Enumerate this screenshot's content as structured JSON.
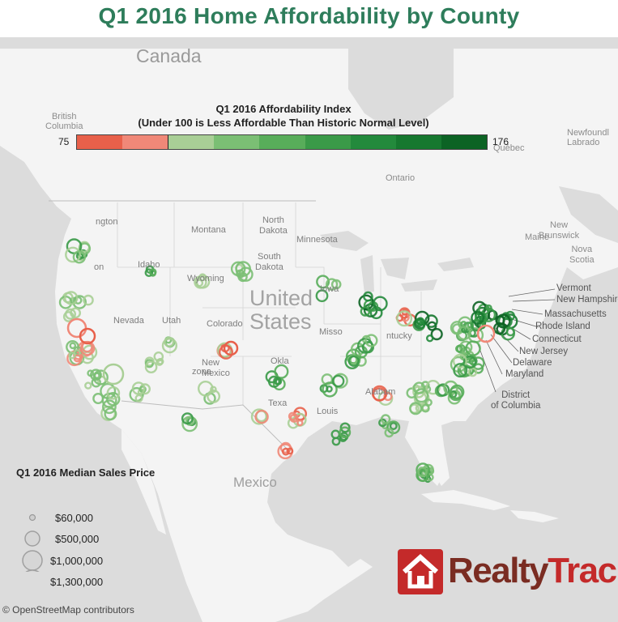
{
  "title": "Q1 2016 Home Affordability by County",
  "places": {
    "canada": "Canada",
    "bc": "British\nColumbia",
    "newfoundland": "Newfoundl\nLabrado",
    "quebec": "Québec",
    "ontario": "Ontario",
    "new_brunswick": "New\nBrunswick",
    "maine": "Maine",
    "nova_scotia": "Nova\nScotia",
    "washington": "ngton",
    "montana": "Montana",
    "north_dakota": "North\nDakota",
    "minnesota": "Minnesota",
    "south_dakota": "South\nDakota",
    "idaho": "Idaho",
    "wyoming": "Wyoming",
    "oregon": "on",
    "nevada": "Nevada",
    "utah": "Utah",
    "colorado": "Colorado",
    "united_states": "United\nStates",
    "arizona": "zona",
    "new_mexico": "New\nMexico",
    "texas": "Texa",
    "oklahoma": "Okla",
    "missouri": "Misso",
    "kentucky": "ntucky",
    "alabama": "Alabam",
    "louisiana": "Louis",
    "mexico": "Mexico",
    "iowa": "Iowa"
  },
  "ne_labels": {
    "vermont": "Vermont",
    "new_hampshire": "New Hampshire",
    "massachusetts": "Massachusetts",
    "rhode_island": "Rhode Island",
    "connecticut": "Connecticut",
    "new_jersey": "New Jersey",
    "delaware": "Delaware",
    "maryland": "Maryland",
    "district": "District\nof Columbia"
  },
  "color_legend": {
    "title_line1": "Q1 2016 Affordability Index",
    "title_line2": "(Under 100 is Less Affordable Than Historic Normal Level)",
    "min": "75",
    "max": "176",
    "colors": [
      "#e8604a",
      "#f08878",
      "#a9cf96",
      "#7bbf74",
      "#58ad5a",
      "#3a9a48",
      "#238a3c",
      "#16782f",
      "#0c6324"
    ]
  },
  "size_legend": {
    "title": "Q1 2016 Median Sales Price",
    "items": [
      "$60,000",
      "$500,000",
      "$1,000,000",
      "$1,300,000"
    ],
    "values": [
      60000,
      500000,
      1000000,
      1300000
    ]
  },
  "logo": {
    "realty": "Realty",
    "trac": "Trac"
  },
  "attribution": "© OpenStreetMap contributors"
}
